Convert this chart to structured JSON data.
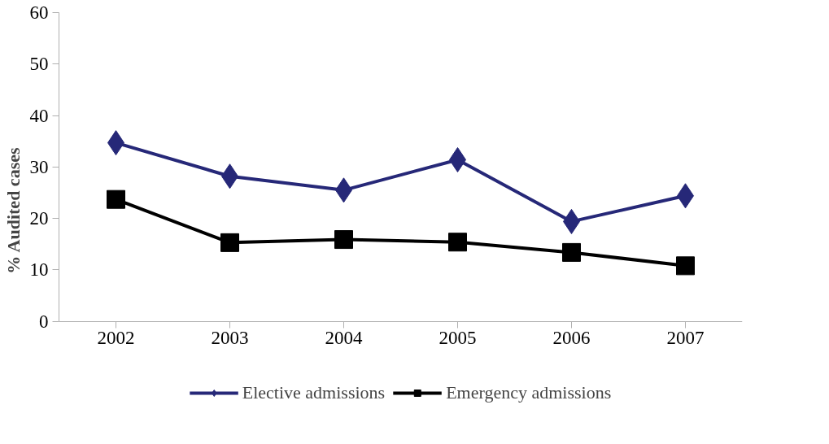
{
  "chart_data": {
    "type": "line",
    "ylabel": "% Audited cases",
    "categories": [
      "2002",
      "2003",
      "2004",
      "2005",
      "2006",
      "2007"
    ],
    "series": [
      {
        "name": "Elective admissions",
        "color": "#262878",
        "marker": "diamond",
        "values": [
          34.7,
          28.2,
          25.5,
          31.4,
          19.4,
          24.4
        ]
      },
      {
        "name": "Emergency admissions",
        "color": "#000000",
        "marker": "square",
        "values": [
          23.7,
          15.3,
          15.9,
          15.4,
          13.4,
          10.8
        ]
      }
    ],
    "ylim": [
      0,
      60
    ],
    "yticks": [
      0,
      10,
      20,
      30,
      40,
      50,
      60
    ],
    "grid": false,
    "legend": "bottom",
    "line_style": "solid"
  }
}
